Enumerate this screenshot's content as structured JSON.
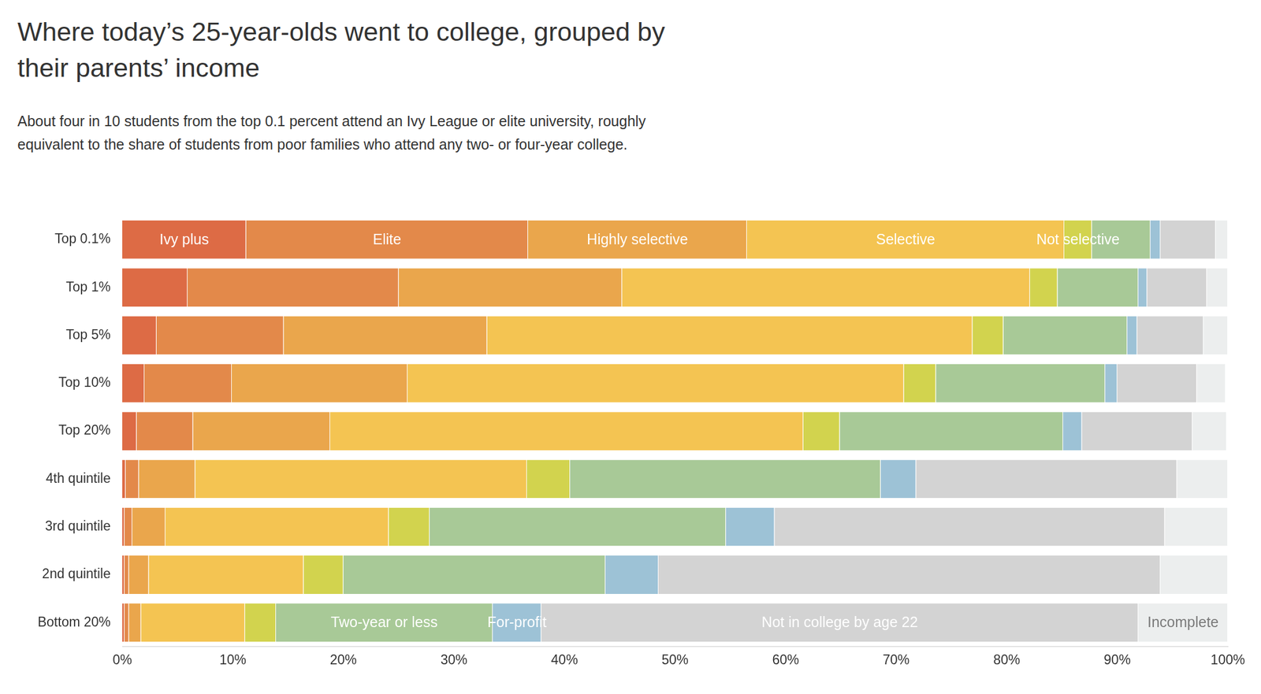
{
  "chart_data": {
    "type": "bar",
    "orientation": "horizontal",
    "stacked": true,
    "grid": false,
    "title": "Where today’s 25-year-olds went to college, grouped by their parents’ income",
    "subtitle": "About four in 10 students from the top 0.1 percent attend an Ivy League or elite university, roughly equivalent to the share of students from poor families who attend any two- or four-year college.",
    "categories": [
      "Top 0.1%",
      "Top 1%",
      "Top 5%",
      "Top 10%",
      "Top 20%",
      "4th quintile",
      "3rd quintile",
      "2nd quintile",
      "Bottom 20%"
    ],
    "series": [
      {
        "name": "Ivy plus",
        "color": "#dd6b45",
        "values": [
          11.2,
          5.9,
          3.1,
          2.0,
          1.3,
          0.3,
          0.2,
          0.2,
          0.2
        ]
      },
      {
        "name": "Elite",
        "color": "#e3894a",
        "values": [
          25.5,
          19.1,
          11.5,
          7.9,
          5.1,
          1.2,
          0.7,
          0.4,
          0.4
        ]
      },
      {
        "name": "Highly selective",
        "color": "#eaa64c",
        "values": [
          19.8,
          20.2,
          18.4,
          15.9,
          12.4,
          5.1,
          3.0,
          1.8,
          1.1
        ]
      },
      {
        "name": "Selective",
        "color": "#f4c452",
        "values": [
          28.7,
          36.9,
          43.9,
          44.9,
          42.8,
          30.0,
          20.2,
          14.0,
          9.4
        ]
      },
      {
        "name": "Not selective",
        "color": "#d2d34e",
        "values": [
          2.5,
          2.5,
          2.8,
          2.9,
          3.3,
          3.9,
          3.7,
          3.6,
          2.8
        ]
      },
      {
        "name": "Two-year or less",
        "color": "#a8c997",
        "values": [
          5.3,
          7.3,
          11.2,
          15.3,
          20.2,
          28.1,
          26.8,
          23.7,
          19.6
        ]
      },
      {
        "name": "For-profit",
        "color": "#9dc2d6",
        "values": [
          0.9,
          0.8,
          0.9,
          1.1,
          1.7,
          3.2,
          4.4,
          4.8,
          4.4
        ]
      },
      {
        "name": "Not in college by age 22",
        "color": "#d3d3d3",
        "values": [
          5.0,
          5.4,
          6.0,
          7.2,
          10.0,
          23.6,
          35.3,
          45.4,
          54.0
        ]
      },
      {
        "name": "Incomplete",
        "color": "#eceeee",
        "values": [
          1.1,
          1.9,
          2.2,
          2.6,
          3.1,
          4.6,
          5.7,
          6.1,
          8.1
        ]
      }
    ],
    "xlim": [
      0,
      100
    ],
    "xticks": [
      {
        "value": 0,
        "label": "0%"
      },
      {
        "value": 10,
        "label": "10%"
      },
      {
        "value": 20,
        "label": "20%"
      },
      {
        "value": 30,
        "label": "30%"
      },
      {
        "value": 40,
        "label": "40%"
      },
      {
        "value": 50,
        "label": "50%"
      },
      {
        "value": 60,
        "label": "60%"
      },
      {
        "value": 70,
        "label": "70%"
      },
      {
        "value": 80,
        "label": "80%"
      },
      {
        "value": 90,
        "label": "90%"
      },
      {
        "value": 100,
        "label": "100%"
      }
    ]
  }
}
